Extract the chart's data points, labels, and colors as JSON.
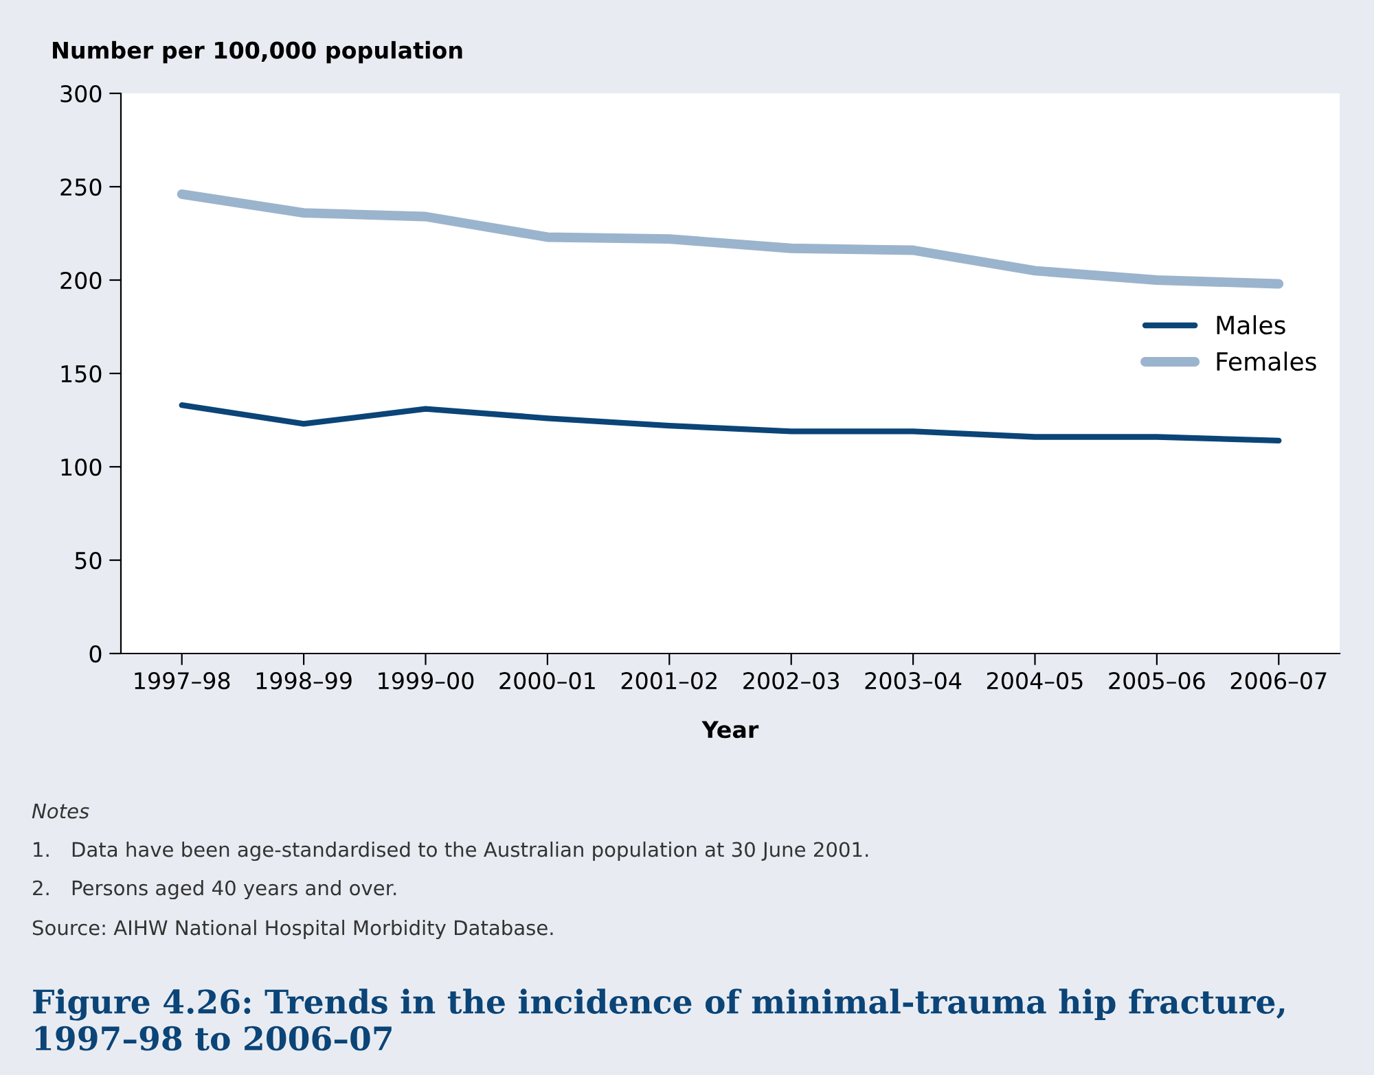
{
  "chart_data": {
    "type": "line",
    "title": "Figure 4.26: Trends in the incidence of minimal-trauma hip fracture, 1997–98 to 2006–07",
    "ylabel": "Number per 100,000 population",
    "xlabel": "Year",
    "categories": [
      "1997–98",
      "1998–99",
      "1999–00",
      "2000–01",
      "2001–02",
      "2002–03",
      "2003–04",
      "2004–05",
      "2005–06",
      "2006–07"
    ],
    "series": [
      {
        "name": "Males",
        "color": "#0b4477",
        "values": [
          133,
          123,
          131,
          126,
          122,
          119,
          119,
          116,
          116,
          114
        ]
      },
      {
        "name": "Females",
        "color": "#9bb4cd",
        "values": [
          246,
          236,
          234,
          223,
          222,
          217,
          216,
          205,
          200,
          198
        ]
      }
    ],
    "ylim": [
      0,
      300
    ],
    "yticks": [
      0,
      50,
      100,
      150,
      200,
      250,
      300
    ],
    "grid": false,
    "legend": "right",
    "marker": "none",
    "line_style": "solid",
    "annotations": [
      "Notes",
      "1. Data have been age-standardised to the Australian population at 30 June 2001.",
      "2. Persons aged 40 years and over.",
      "Source: AIHW National Hospital Morbidity Database."
    ]
  }
}
